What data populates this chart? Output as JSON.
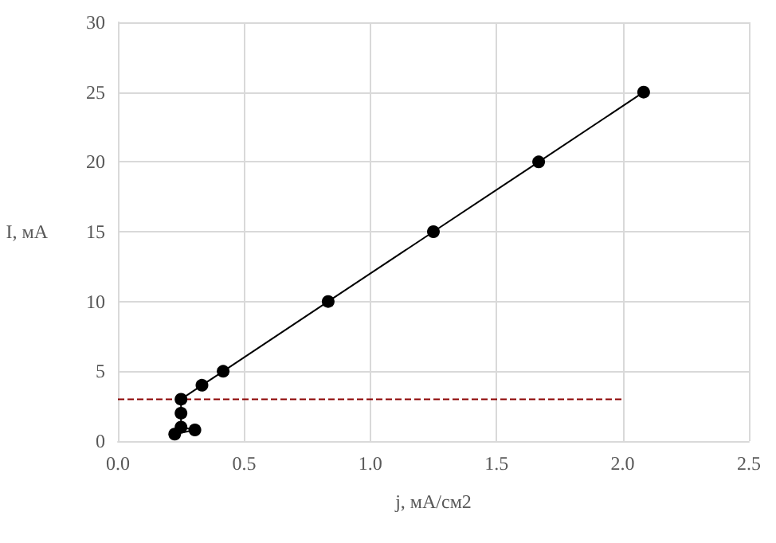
{
  "chart_data": {
    "type": "line",
    "xlabel": "j, мА/см2",
    "ylabel": "I, мА",
    "xlim": [
      0,
      2.5
    ],
    "xticks": [
      {
        "value": 0,
        "label": "0.0"
      },
      {
        "value": 0.5,
        "label": "0.5"
      },
      {
        "value": 1,
        "label": "1.0"
      },
      {
        "value": 1.5,
        "label": "1.5"
      },
      {
        "value": 2,
        "label": "2.0"
      },
      {
        "value": 2.5,
        "label": "2.5"
      }
    ],
    "ylim": [
      0,
      30
    ],
    "yticks": [
      0,
      5,
      10,
      15,
      20,
      25,
      30
    ],
    "grid": true,
    "series": [
      {
        "color": "#000000",
        "marker": "circle",
        "line_style": "solid",
        "x": [
          0.225,
          0.305,
          0.26,
          0.25,
          0.25,
          0.25,
          0.333,
          0.417,
          0.833,
          1.25,
          1.667,
          2.083
        ],
        "values": [
          0.5,
          0.8,
          null,
          1,
          2,
          3,
          4,
          5,
          10,
          15,
          20,
          25
        ]
      },
      {
        "color": "#8b0000",
        "marker": "none",
        "line_style": "dashed",
        "x": [
          0,
          2
        ],
        "values": [
          3,
          3
        ]
      }
    ]
  }
}
